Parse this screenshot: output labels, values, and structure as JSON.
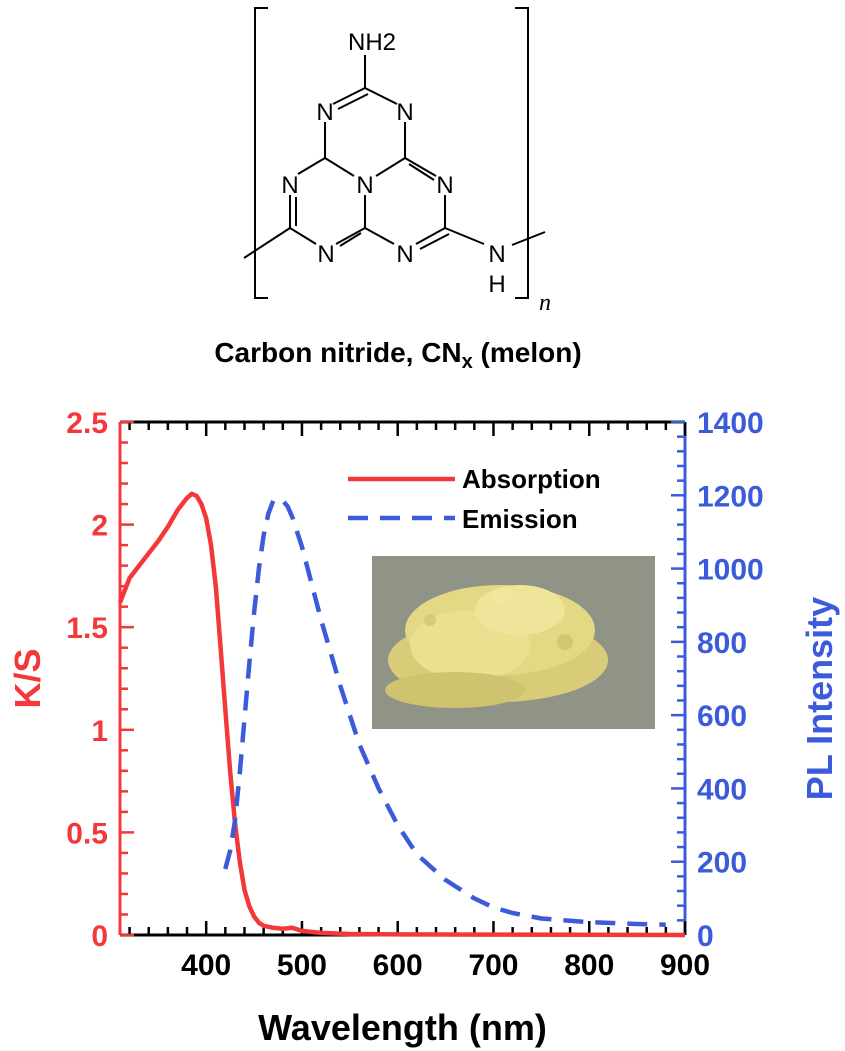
{
  "structure": {
    "atoms": {
      "amine_top": "NH2",
      "n1": "N",
      "n2": "N",
      "n3": "N",
      "n4": "N",
      "n5": "N",
      "n6": "N",
      "n7": "N",
      "nh_n": "N",
      "nh_h": "H",
      "repeat": "n"
    },
    "caption": "Carbon nitride, CN",
    "caption_sub": "x",
    "caption_tail": " (melon)"
  },
  "colors": {
    "absorption": "#f2383a",
    "emission": "#3b5bdb",
    "axis_left": "#f2383a",
    "axis_right": "#3b5bdb",
    "frame": "#000000"
  },
  "inset_photo": {
    "subject": "yellow melon powder photo",
    "background": "#8f9486",
    "powder": "#e2d680"
  },
  "chart_data": {
    "type": "line",
    "xlabel": "Wavelength (nm)",
    "ylabel": "K/S",
    "y2label": "PL Intensity",
    "xlim": [
      310,
      900
    ],
    "ylim": [
      0,
      2.5
    ],
    "y2lim": [
      0,
      1400
    ],
    "x_ticks": [
      "400",
      "500",
      "600",
      "700",
      "800",
      "900"
    ],
    "x_tick_values": [
      400,
      500,
      600,
      700,
      800,
      900
    ],
    "y_ticks": [
      "0",
      "0.5",
      "1",
      "1.5",
      "2",
      "2.5"
    ],
    "y_tick_values": [
      0,
      0.5,
      1,
      1.5,
      2,
      2.5
    ],
    "y2_ticks": [
      "0",
      "200",
      "400",
      "600",
      "800",
      "1000",
      "1200",
      "1400"
    ],
    "y2_tick_values": [
      0,
      200,
      400,
      600,
      800,
      1000,
      1200,
      1400
    ],
    "grid": false,
    "legend_position": "top-right",
    "series": [
      {
        "name": "Absorption",
        "axis": "left",
        "style": "solid",
        "x": [
          310,
          320,
          330,
          340,
          350,
          360,
          370,
          380,
          385,
          390,
          395,
          400,
          405,
          410,
          415,
          420,
          425,
          430,
          435,
          440,
          445,
          450,
          455,
          460,
          470,
          480,
          490,
          500,
          520,
          550,
          600,
          700,
          800,
          900
        ],
        "y": [
          1.62,
          1.74,
          1.8,
          1.86,
          1.92,
          1.99,
          2.07,
          2.13,
          2.15,
          2.14,
          2.1,
          2.03,
          1.9,
          1.7,
          1.4,
          1.1,
          0.8,
          0.55,
          0.36,
          0.22,
          0.14,
          0.09,
          0.06,
          0.045,
          0.035,
          0.03,
          0.035,
          0.02,
          0.01,
          0.005,
          0.003,
          0.002,
          0.001,
          0.0
        ]
      },
      {
        "name": "Emission",
        "axis": "right",
        "style": "dashed",
        "x": [
          420,
          425,
          430,
          435,
          440,
          445,
          450,
          455,
          460,
          465,
          470,
          475,
          480,
          485,
          490,
          500,
          510,
          520,
          530,
          540,
          550,
          560,
          580,
          600,
          620,
          650,
          680,
          700,
          720,
          750,
          800,
          850,
          880
        ],
        "y": [
          180,
          230,
          310,
          440,
          590,
          740,
          880,
          1000,
          1090,
          1150,
          1185,
          1190,
          1185,
          1170,
          1140,
          1060,
          960,
          860,
          770,
          680,
          600,
          520,
          400,
          300,
          220,
          150,
          100,
          75,
          60,
          45,
          35,
          30,
          28
        ]
      }
    ]
  }
}
